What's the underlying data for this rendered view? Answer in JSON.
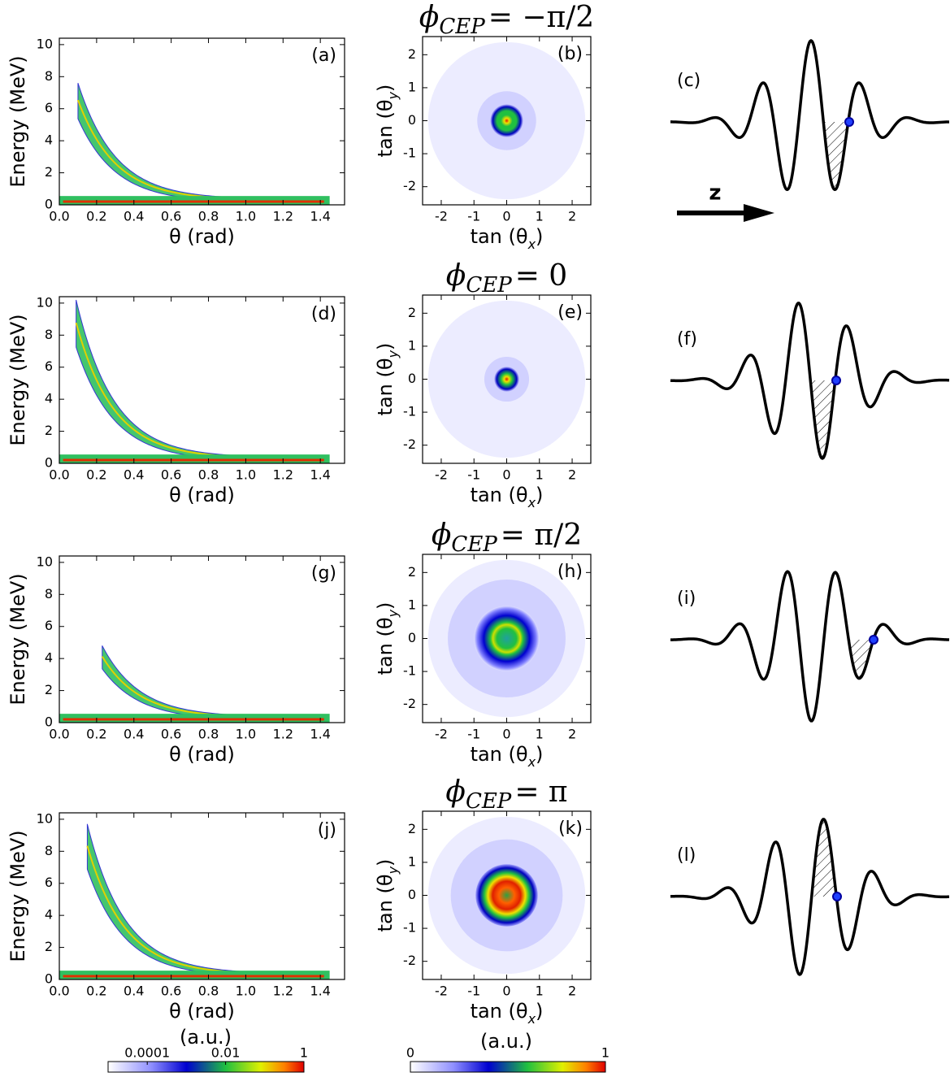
{
  "chart_data": [
    {
      "type": "heatmap",
      "panel_label": "(a)",
      "xlabel": "θ (rad)",
      "ylabel": "Energy (MeV)",
      "xlim": [
        0,
        1.53
      ],
      "ylim": [
        0,
        10.4
      ],
      "xticks": [
        {
          "value": 0,
          "label": "0.0"
        },
        0.2,
        0.4,
        0.6,
        0.8,
        {
          "value": 1,
          "label": "1.0"
        },
        1.2,
        1.4
      ],
      "yticks": [
        0,
        2,
        4,
        6,
        8,
        10
      ]
    },
    {
      "type": "heatmap",
      "title": {
        "symbol": "ϕ",
        "subscript": "CEP",
        "text": "= −π/2"
      },
      "panel_label": "(b)",
      "xlabel": {
        "main": "tan (θ",
        "sub": "x",
        "end": ")"
      },
      "ylabel": {
        "main": "tan (θ",
        "sub": "y",
        "end": ")"
      },
      "xlim": [
        -2.57,
        2.57
      ],
      "ylim": [
        -2.55,
        2.55
      ],
      "xticks": [
        -2,
        -1,
        0,
        1,
        2
      ],
      "yticks": [
        -2,
        -1,
        0,
        1,
        2
      ]
    },
    {
      "type": "heatmap",
      "panel_label": "(d)",
      "xlabel": "θ (rad)",
      "ylabel": "Energy (MeV)",
      "xlim": [
        0,
        1.53
      ],
      "ylim": [
        0,
        10.4
      ],
      "xticks": [
        {
          "value": 0,
          "label": "0.0"
        },
        0.2,
        0.4,
        0.6,
        0.8,
        {
          "value": 1,
          "label": "1.0"
        },
        1.2,
        1.4
      ],
      "yticks": [
        0,
        2,
        4,
        6,
        8,
        10
      ]
    },
    {
      "type": "heatmap",
      "title": {
        "symbol": "ϕ",
        "subscript": "CEP",
        "text": "= 0"
      },
      "panel_label": "(e)",
      "xlabel": {
        "main": "tan (θ",
        "sub": "x",
        "end": ")"
      },
      "ylabel": {
        "main": "tan (θ",
        "sub": "y",
        "end": ")"
      },
      "xlim": [
        -2.57,
        2.57
      ],
      "ylim": [
        -2.55,
        2.55
      ],
      "xticks": [
        -2,
        -1,
        0,
        1,
        2
      ],
      "yticks": [
        -2,
        -1,
        0,
        1,
        2
      ]
    },
    {
      "type": "heatmap",
      "panel_label": "(g)",
      "xlabel": "θ (rad)",
      "ylabel": "Energy (MeV)",
      "xlim": [
        0,
        1.53
      ],
      "ylim": [
        0,
        10.4
      ],
      "xticks": [
        {
          "value": 0,
          "label": "0.0"
        },
        0.2,
        0.4,
        0.6,
        0.8,
        {
          "value": 1,
          "label": "1.0"
        },
        1.2,
        1.4
      ],
      "yticks": [
        0,
        2,
        4,
        6,
        8,
        10
      ]
    },
    {
      "type": "heatmap",
      "title": {
        "symbol": "ϕ",
        "subscript": "CEP",
        "text": "= π/2"
      },
      "panel_label": "(h)",
      "xlabel": {
        "main": "tan (θ",
        "sub": "x",
        "end": ")"
      },
      "ylabel": {
        "main": "tan (θ",
        "sub": "y",
        "end": ")"
      },
      "xlim": [
        -2.57,
        2.57
      ],
      "ylim": [
        -2.55,
        2.55
      ],
      "xticks": [
        -2,
        -1,
        0,
        1,
        2
      ],
      "yticks": [
        -2,
        -1,
        0,
        1,
        2
      ]
    },
    {
      "type": "heatmap",
      "panel_label": "(j)",
      "xlabel": "θ (rad)",
      "ylabel": "Energy (MeV)",
      "xlim": [
        0,
        1.53
      ],
      "ylim": [
        0,
        10.4
      ],
      "xticks": [
        {
          "value": 0,
          "label": "0.0"
        },
        0.2,
        0.4,
        0.6,
        0.8,
        {
          "value": 1,
          "label": "1.0"
        },
        1.2,
        1.4
      ],
      "yticks": [
        0,
        2,
        4,
        6,
        8,
        10
      ]
    },
    {
      "type": "heatmap",
      "title": {
        "symbol": "ϕ",
        "subscript": "CEP",
        "text": "= π"
      },
      "panel_label": "(k)",
      "xlabel": {
        "main": "tan (θ",
        "sub": "x",
        "end": ")"
      },
      "ylabel": {
        "main": "tan (θ",
        "sub": "y",
        "end": ")"
      },
      "xlim": [
        -2.57,
        2.57
      ],
      "ylim": [
        -2.55,
        2.55
      ],
      "xticks": [
        -2,
        -1,
        0,
        1,
        2
      ],
      "yticks": [
        -2,
        -1,
        0,
        1,
        2
      ]
    }
  ],
  "diagrams": [
    {
      "label": "(c)"
    },
    {
      "label": "(f)"
    },
    {
      "label": "(i)"
    },
    {
      "label": "(l)"
    }
  ],
  "arrow_label": "z",
  "colorbars": [
    {
      "label": "(a.u.)",
      "scale": "log",
      "clim": [
        1e-05,
        1
      ],
      "ticks": [
        0.0001,
        0.01,
        1
      ]
    },
    {
      "label": "(a.u.)",
      "scale": "linear",
      "clim": [
        0,
        1
      ],
      "ticks": [
        0,
        1
      ]
    }
  ]
}
